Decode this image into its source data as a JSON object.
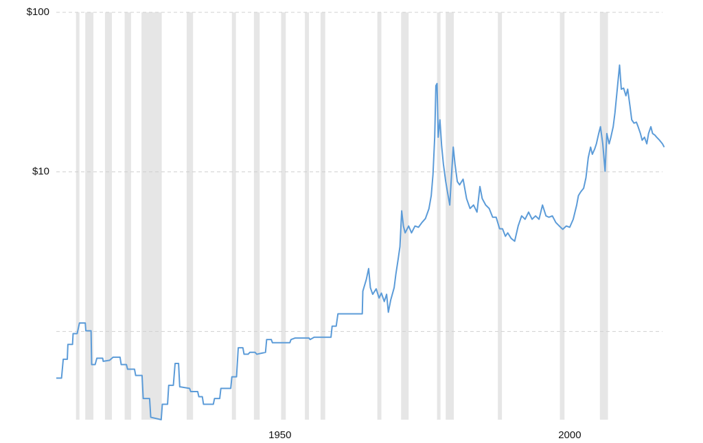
{
  "chart_data": {
    "type": "line",
    "log_y": true,
    "grid": true,
    "color": "#5b9bd8",
    "shade_color": "#e6e6e6",
    "xlim": [
      1911.4,
      2016.6
    ],
    "ylim": [
      0.28,
      100
    ],
    "xticks": [
      1950,
      2000
    ],
    "yticks": [
      {
        "value": 1,
        "label": null
      },
      {
        "value": 10,
        "label": "$10"
      },
      {
        "value": 100,
        "label": "$100"
      }
    ],
    "shaded_ranges": [
      [
        1914.8,
        1915.4
      ],
      [
        1916.4,
        1917.8
      ],
      [
        1919.8,
        1921.0
      ],
      [
        1923.2,
        1924.3
      ],
      [
        1926.1,
        1929.6
      ],
      [
        1933.9,
        1935.0
      ],
      [
        1941.7,
        1942.4
      ],
      [
        1945.5,
        1946.5
      ],
      [
        1950.2,
        1951.0
      ],
      [
        1954.3,
        1955.0
      ],
      [
        1957.0,
        1957.8
      ],
      [
        1966.8,
        1967.5
      ],
      [
        1970.9,
        1972.2
      ],
      [
        1977.1,
        1977.7
      ],
      [
        1978.6,
        1980.0
      ],
      [
        1987.6,
        1988.3
      ],
      [
        1998.3,
        1999.1
      ],
      [
        2005.2,
        2006.6
      ]
    ],
    "x": [
      1911.4,
      1912.3,
      1912.6,
      1913.3,
      1913.4,
      1914.2,
      1914.3,
      1915.0,
      1915.4,
      1916.4,
      1916.5,
      1917.4,
      1917.5,
      1918.1,
      1918.4,
      1919.4,
      1919.5,
      1920.6,
      1921.2,
      1922.4,
      1922.6,
      1923.5,
      1923.7,
      1924.9,
      1925.1,
      1926.2,
      1926.4,
      1927.5,
      1927.7,
      1929.5,
      1929.7,
      1930.6,
      1930.8,
      1931.6,
      1931.9,
      1932.5,
      1932.7,
      1934.4,
      1934.6,
      1935.8,
      1936.0,
      1936.6,
      1936.8,
      1938.5,
      1938.7,
      1939.6,
      1939.8,
      1941.5,
      1941.7,
      1942.5,
      1942.8,
      1943.6,
      1943.8,
      1944.5,
      1944.8,
      1945.7,
      1946.0,
      1947.5,
      1947.7,
      1948.5,
      1948.7,
      1951.7,
      1951.9,
      1952.6,
      1955.0,
      1955.2,
      1955.9,
      1958.8,
      1959.0,
      1959.7,
      1960.0,
      1964.2,
      1964.3,
      1964.9,
      1965.3,
      1965.6,
      1966.0,
      1966.6,
      1967.1,
      1967.5,
      1968.0,
      1968.4,
      1968.7,
      1969.1,
      1969.7,
      1970.0,
      1970.4,
      1970.7,
      1971.0,
      1971.3,
      1971.6,
      1972.2,
      1972.7,
      1973.3,
      1973.9,
      1974.5,
      1975.1,
      1975.7,
      1976.1,
      1976.4,
      1976.7,
      1976.9,
      1977.1,
      1977.3,
      1977.6,
      1977.9,
      1978.2,
      1978.6,
      1978.9,
      1979.3,
      1979.5,
      1979.9,
      1980.2,
      1980.6,
      1981.0,
      1981.6,
      1982.2,
      1982.8,
      1983.4,
      1984.0,
      1984.5,
      1984.9,
      1985.5,
      1986.1,
      1986.7,
      1987.3,
      1987.9,
      1988.4,
      1988.9,
      1989.3,
      1989.9,
      1990.5,
      1991.1,
      1991.7,
      1992.3,
      1992.9,
      1993.5,
      1994.1,
      1994.7,
      1995.3,
      1995.9,
      1996.4,
      1997.0,
      1997.6,
      1998.2,
      1998.8,
      1999.4,
      2000.0,
      2000.6,
      2001.2,
      2001.5,
      2001.9,
      2002.4,
      2002.8,
      2003.2,
      2003.6,
      2003.9,
      2004.3,
      2004.6,
      2005.0,
      2005.3,
      2005.7,
      2006.1,
      2006.4,
      2006.8,
      2007.1,
      2007.5,
      2007.8,
      2008.2,
      2008.6,
      2008.9,
      2009.3,
      2009.7,
      2010.0,
      2010.4,
      2010.7,
      2011.1,
      2011.5,
      2011.8,
      2012.2,
      2012.5,
      2012.9,
      2013.3,
      2013.6,
      2014.0,
      2014.3,
      2014.7,
      2015.0,
      2015.5,
      2016.0,
      2016.3
    ],
    "values": [
      0.51,
      0.51,
      0.67,
      0.67,
      0.83,
      0.83,
      0.97,
      0.97,
      1.13,
      1.13,
      1.01,
      1.01,
      0.62,
      0.62,
      0.68,
      0.68,
      0.65,
      0.66,
      0.69,
      0.69,
      0.62,
      0.62,
      0.58,
      0.58,
      0.53,
      0.53,
      0.38,
      0.38,
      0.29,
      0.28,
      0.35,
      0.35,
      0.46,
      0.46,
      0.63,
      0.63,
      0.45,
      0.44,
      0.42,
      0.42,
      0.39,
      0.39,
      0.35,
      0.35,
      0.38,
      0.38,
      0.44,
      0.44,
      0.52,
      0.52,
      0.79,
      0.79,
      0.72,
      0.72,
      0.74,
      0.74,
      0.72,
      0.74,
      0.89,
      0.89,
      0.85,
      0.85,
      0.89,
      0.91,
      0.91,
      0.89,
      0.92,
      0.92,
      1.08,
      1.08,
      1.29,
      1.29,
      1.79,
      2.12,
      2.48,
      1.88,
      1.71,
      1.85,
      1.62,
      1.74,
      1.54,
      1.71,
      1.32,
      1.57,
      1.88,
      2.29,
      2.85,
      3.4,
      5.7,
      4.58,
      4.15,
      4.58,
      4.15,
      4.58,
      4.5,
      4.82,
      5.1,
      5.87,
      7.1,
      9.6,
      16.5,
      34.7,
      35.8,
      16.5,
      21.2,
      14.5,
      11.2,
      8.7,
      7.5,
      6.2,
      8.3,
      14.3,
      11.2,
      8.7,
      8.3,
      9.0,
      6.8,
      5.9,
      6.2,
      5.6,
      8.1,
      6.8,
      6.2,
      5.9,
      5.2,
      5.2,
      4.4,
      4.4,
      3.95,
      4.15,
      3.83,
      3.68,
      4.58,
      5.3,
      5.05,
      5.6,
      5.05,
      5.3,
      5.05,
      6.2,
      5.3,
      5.2,
      5.3,
      4.82,
      4.58,
      4.37,
      4.58,
      4.5,
      5.05,
      6.2,
      7.1,
      7.5,
      7.9,
      9.2,
      12.3,
      14.3,
      12.9,
      13.9,
      15.0,
      17.4,
      19.2,
      15.0,
      10.1,
      17.4,
      15.0,
      16.5,
      19.2,
      23.4,
      33.0,
      46.7,
      33.0,
      33.5,
      30.0,
      33.0,
      25.8,
      21.2,
      20.2,
      20.5,
      19.2,
      17.4,
      15.8,
      16.5,
      15.0,
      17.4,
      19.2,
      17.4,
      17.0,
      16.5,
      15.8,
      15.0,
      14.3
    ]
  }
}
